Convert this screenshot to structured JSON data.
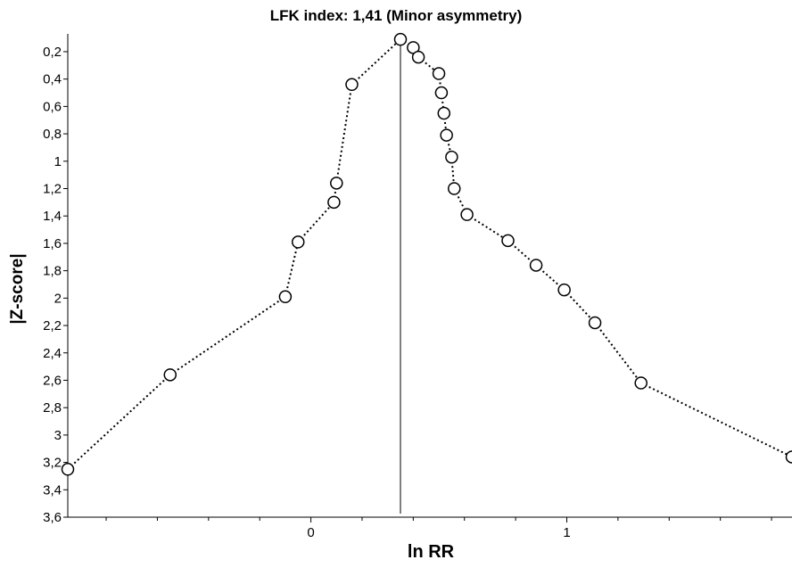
{
  "chart_data": {
    "type": "scatter",
    "title": "LFK index: 1,41 (Minor asymmetry)",
    "xlabel": "ln RR",
    "ylabel": "|Z-score|",
    "xlim": [
      -0.95,
      1.88
    ],
    "ylim": [
      0.07,
      3.6
    ],
    "y_inverted": true,
    "grid": false,
    "connected_by": "dotted-line",
    "reference_line_x": 0.35,
    "x_ticks": [
      0,
      1
    ],
    "x_tick_labels": [
      "0",
      "1"
    ],
    "y_ticks": [
      0.2,
      0.4,
      0.6,
      0.8,
      1,
      1.2,
      1.4,
      1.6,
      1.8,
      2,
      2.2,
      2.4,
      2.6,
      2.8,
      3,
      3.2,
      3.4,
      3.6
    ],
    "y_tick_labels": [
      "0,2",
      "0,4",
      "0,6",
      "0,8",
      "1",
      "1,2",
      "1,4",
      "1,6",
      "1,8",
      "2",
      "2,2",
      "2,4",
      "2,6",
      "2,8",
      "3",
      "3,2",
      "3,4",
      "3,6"
    ],
    "x": [
      -0.95,
      -0.55,
      -0.1,
      -0.05,
      0.09,
      0.1,
      0.16,
      0.35,
      0.4,
      0.42,
      0.5,
      0.51,
      0.52,
      0.53,
      0.55,
      0.56,
      0.61,
      0.77,
      0.88,
      0.99,
      1.11,
      1.29,
      1.88
    ],
    "y": [
      3.25,
      2.56,
      1.99,
      1.59,
      1.3,
      1.16,
      0.44,
      0.11,
      0.17,
      0.24,
      0.36,
      0.5,
      0.65,
      0.81,
      0.97,
      1.2,
      1.39,
      1.58,
      1.76,
      1.94,
      2.18,
      2.62,
      3.16
    ]
  }
}
